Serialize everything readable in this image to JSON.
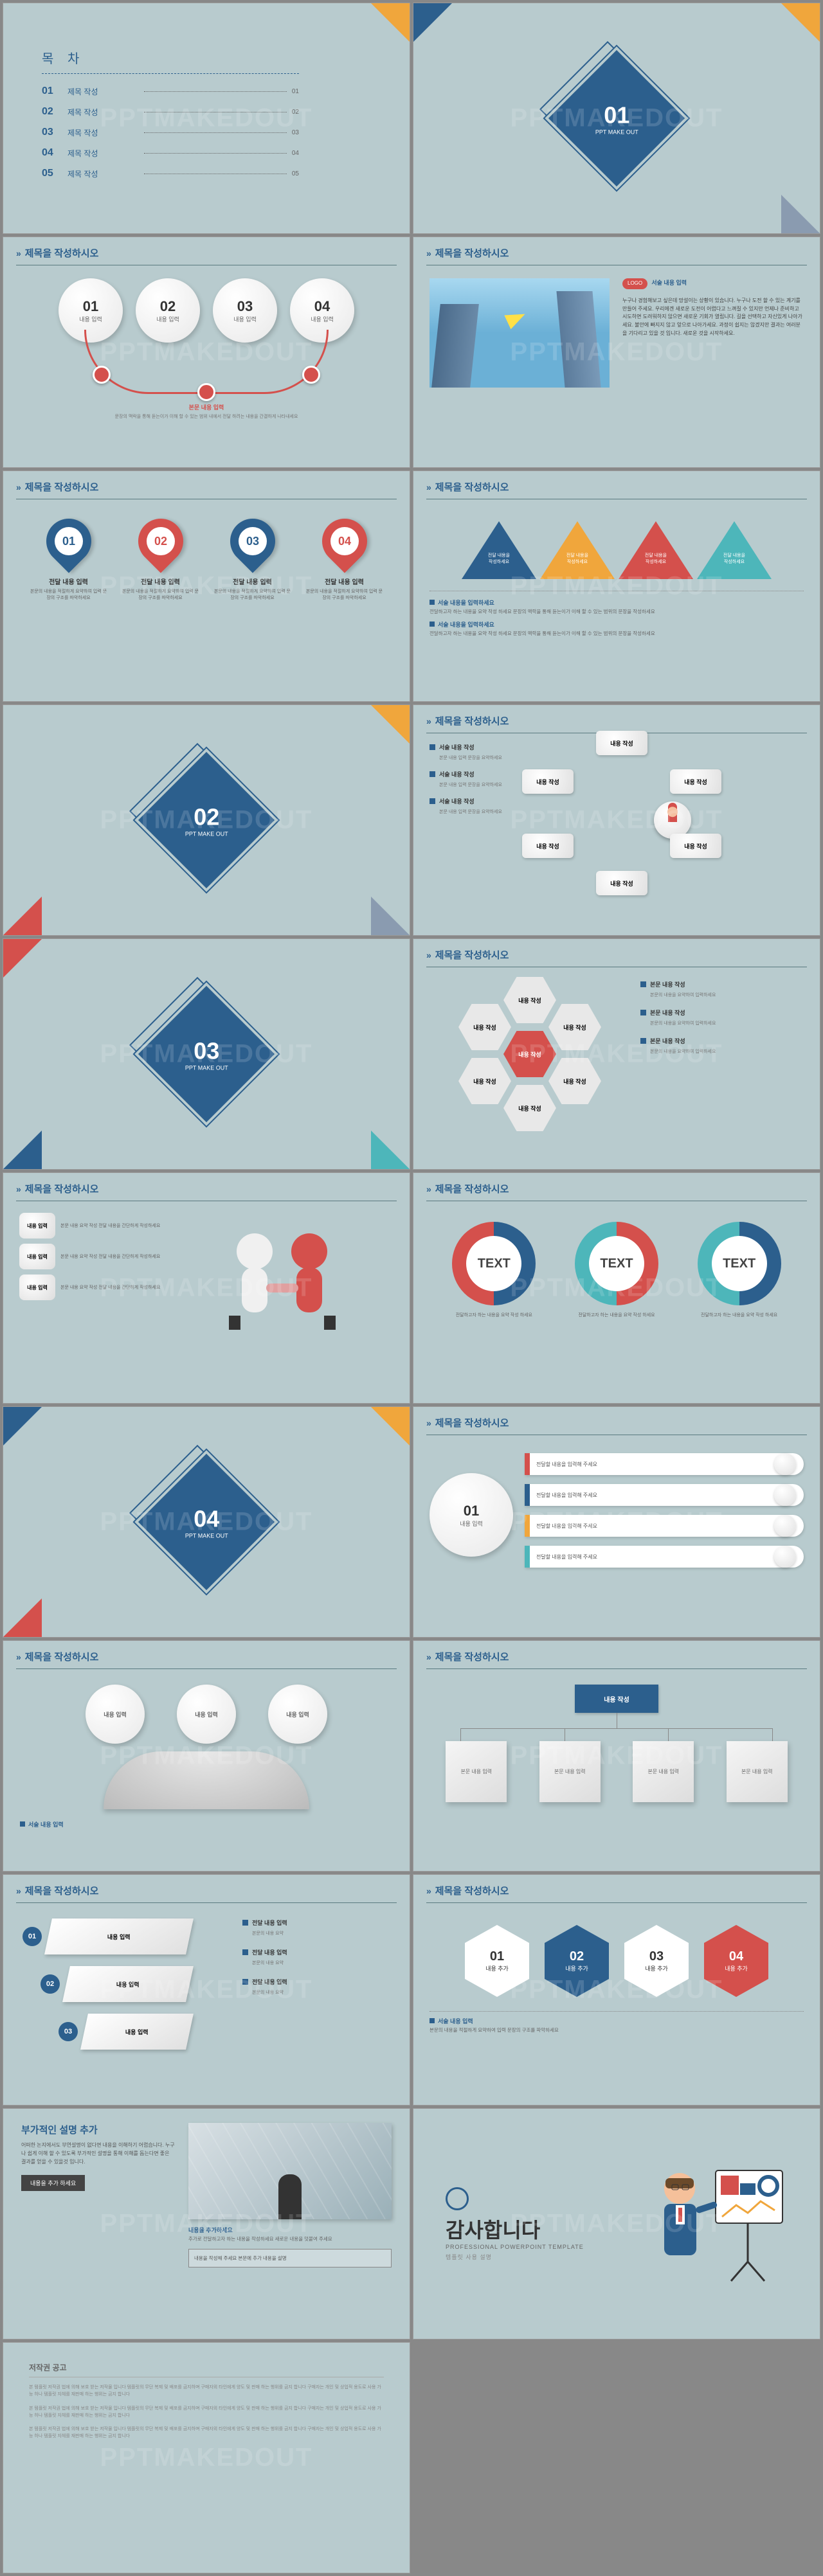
{
  "colors": {
    "bg": "#b8cbce",
    "navy": "#2c5f8d",
    "red": "#d4504c",
    "orange": "#f0a63c",
    "teal": "#4db6ba",
    "grey": "#b0b0b0",
    "dark": "#444444"
  },
  "watermark": "PPTMAKEDOUT",
  "toc": {
    "title": "목 차",
    "items": [
      {
        "num": "01",
        "label": "제목 작성",
        "page": "01"
      },
      {
        "num": "02",
        "label": "제목 작성",
        "page": "02"
      },
      {
        "num": "03",
        "label": "제목 작성",
        "page": "03"
      },
      {
        "num": "04",
        "label": "제목 작성",
        "page": "04"
      },
      {
        "num": "05",
        "label": "제목 작성",
        "page": "05"
      }
    ]
  },
  "slide_title": "제목을 작성하시오",
  "section_sub": "PPT MAKE OUT",
  "sections": [
    "01",
    "02",
    "03",
    "04"
  ],
  "s3": {
    "note": "본문 내용 입력",
    "note2": "문장의 맥락을 통해 듣는이가 이해 할 수 있는 범위 내에서 전달 하려는 내용을 간결하게 나타내세요"
  },
  "pins": {
    "items": [
      {
        "num": "01",
        "color": "#2c5f8d"
      },
      {
        "num": "02",
        "color": "#d4504c"
      },
      {
        "num": "03",
        "color": "#2c5f8d"
      },
      {
        "num": "04",
        "color": "#d4504c"
      }
    ],
    "heading": "전달 내용 입력",
    "desc": "본문의 내용을 적절하게 요약하여 입력 문장의 구조를 파악하세요"
  },
  "s4": {
    "circles": [
      {
        "num": "01",
        "label": "내용 입력"
      },
      {
        "num": "02",
        "label": "내용 입력"
      },
      {
        "num": "03",
        "label": "내용 입력"
      },
      {
        "num": "04",
        "label": "내용 입력"
      }
    ],
    "arc_color": "#d4504c"
  },
  "img_text": {
    "badge": "LOGO",
    "heading": "서술 내용 입력",
    "body": "누구나 경험해보고 싶은데 망설이는 상황이 있습니다. 누구나 도전 할 수 있는 계기를 만들어 주세요. 우리에겐 새로운 도전이 어렵다고 느껴질 수 있지만 언제나 준비하고 시도하면 도려워하지 않으면 새로운 기회가 열립니다. 길을 선택하고 자신있게 나아가세요. 불안에 빠지지 않고 앞으로 나아가세요. 과정이 쉽지는 않겠지만 결과는 여러분을 기다리고 있을 것 입니다. 새로운 것을 시작하세요."
  },
  "tris": [
    {
      "color": "#2c5f8d",
      "t1": "전달 내용을",
      "t2": "작성하세요"
    },
    {
      "color": "#f0a63c",
      "t1": "전달 내용을",
      "t2": "작성하세요"
    },
    {
      "color": "#d4504c",
      "t1": "전달 내용을",
      "t2": "작성하세요"
    },
    {
      "color": "#4db6ba",
      "t1": "전달 내용을",
      "t2": "작성하세요"
    }
  ],
  "tri_bullets": {
    "h": "서술 내용을 입력하세요",
    "l": "전달하고자 하는 내용을 요약 작성 하세요 문장의 맥락을 통해 듣는이가 이해 할 수 있는 범위의 문장을 작성하세요"
  },
  "radial": {
    "center_img": "figure",
    "labels": [
      "내용 작성",
      "내용 작성",
      "내용 작성",
      "내용 작성",
      "내용 작성",
      "내용 작성"
    ]
  },
  "radial_bullets": [
    {
      "h": "서술 내용 작성",
      "l": "본문 내용 입력 문장을 요약하세요"
    },
    {
      "h": "서술 내용 작성",
      "l": "본문 내용 입력 문장을 요약하세요"
    },
    {
      "h": "서술 내용 작성",
      "l": "본문 내용 입력 문장을 요약하세요"
    }
  ],
  "hexes": {
    "label": "내용 작성",
    "colors": [
      "#e8e8e8",
      "#e8e8e8",
      "#d4504c",
      "#e8e8e8",
      "#e8e8e8",
      "#e8e8e8",
      "#e8e8e8"
    ],
    "bullets": [
      {
        "h": "본문 내용 작성",
        "l": "본문의 내용을 요약하여 입력하세요"
      },
      {
        "h": "본문 내용 작성",
        "l": "본문의 내용을 요약하여 입력하세요"
      },
      {
        "h": "본문 내용 작성",
        "l": "본문의 내용을 요약하여 입력하세요"
      }
    ]
  },
  "handshake": {
    "labels": [
      "내용 입력",
      "내용 입력",
      "내용 입력"
    ],
    "desc": "본문 내용 요약 작성 전달 내용을 간단하게 작성하세요"
  },
  "donuts": [
    {
      "text": "TEXT",
      "c1": "#2c5f8d",
      "c2": "#d4504c"
    },
    {
      "text": "TEXT",
      "c1": "#d4504c",
      "c2": "#4db6ba"
    },
    {
      "text": "TEXT",
      "c1": "#2c5f8d",
      "c2": "#4db6ba"
    }
  ],
  "donut_foot": "전달하고자 하는 내용을 요약 작성 하세요",
  "bars": [
    {
      "color": "#d4504c",
      "text": "전달할 내용을 입력해 주세요"
    },
    {
      "color": "#2c5f8d",
      "text": "전달할 내용을 입력해 주세요"
    },
    {
      "color": "#f0a63c",
      "text": "전달할 내용을 입력해 주세요"
    },
    {
      "color": "#4db6ba",
      "text": "전달할 내용을 입력해 주세요"
    }
  ],
  "bars_side": {
    "num": "01",
    "label": "내용 입력"
  },
  "tree": {
    "top": [
      "내용 입력",
      "내용 입력",
      "내용 입력"
    ],
    "label": "서술 내용 입력"
  },
  "org": {
    "top": "내용 작성",
    "boxes": [
      "본문 내용 입력",
      "본문 내용 입력",
      "본문 내용 입력",
      "본문 내용 입력"
    ]
  },
  "flow": {
    "boxes": [
      "내용 입력",
      "내용 입력",
      "내용 입력"
    ],
    "nums": [
      "01",
      "02",
      "03"
    ],
    "bullets": [
      {
        "h": "전달 내용 입력",
        "l": "본문의 내용 요약"
      },
      {
        "h": "전달 내용 입력",
        "l": "본문의 내용 요약"
      },
      {
        "h": "전달 내용 입력",
        "l": "본문의 내용 요약"
      }
    ]
  },
  "hex_steps": {
    "items": [
      {
        "num": "01",
        "label": "내용 추가",
        "color": "#ffffff"
      },
      {
        "num": "02",
        "label": "내용 추가",
        "color": "#2c5f8d"
      },
      {
        "num": "03",
        "label": "내용 추가",
        "color": "#ffffff"
      },
      {
        "num": "04",
        "label": "내용 추가",
        "color": "#d4504c"
      }
    ],
    "foot_h": "서술 내용 입력",
    "foot_l": "본문의 내용을 적절하게 요약하여 입력 문장의 구조를 파악하세요"
  },
  "extra": {
    "title": "부가적인 설명 추가",
    "body": "어떠한 논지에서도 부연설명이 없다면 내용을 이해하기 어렵습니다. 누구나 쉽게 이해 할 수 있도록 부가적인 설명을 통해 이해를 돕는다면 좋은 결과를 얻을 수 있을것 입니다.",
    "btn": "내용을 추가 하세요",
    "sub_h": "내용을 추가하세요",
    "sub_l": "추가로 전달하고자 하는 내용을 작성하세요 새로운 내용을 덧붙여 주세요",
    "box": "내용을 작성해 주세요 본문에 추가 내용을 설명"
  },
  "thanks": {
    "title": "감사합니다",
    "sub": "PROFESSIONAL POWERPOINT TEMPLATE",
    "sub2": "템플릿 사용 설명"
  },
  "license": {
    "title": "저작권 공고",
    "body": "본 템플릿 저작권 법에 의해 보호 받는 저작물 입니다 템플릿의 무단 복제 및 배포를 금지하며 구매자외 타인에게 양도 및 판매 하는 행위를 금지 합니다 구매자는 개인 및 상업적 용도로 사용 가능 하나 템플릿 자체를 재판매 하는 행위는 금지 합니다"
  }
}
